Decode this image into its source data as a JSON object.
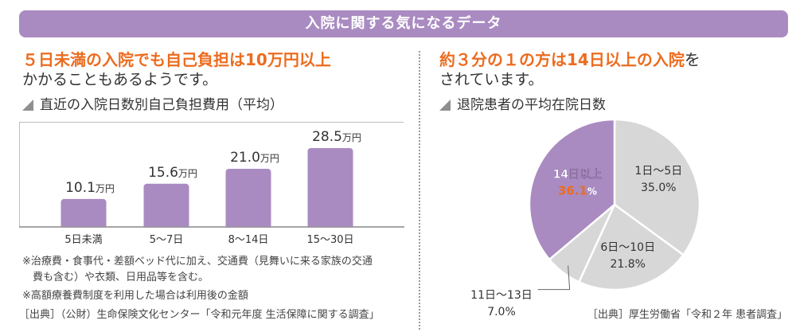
{
  "banner": "入院に関する気になるデータ",
  "left": {
    "headline_highlight": "５日未満の入院でも自己負担は10万円以上",
    "headline_rest": "かかることもあるようです。",
    "section_title": "直近の入院日数別自己負担費用（平均）",
    "notes": [
      "※治療費・食事代・差額ベッド代に加え、交通費（見舞いに来る家族の交通",
      "　費も含む）や衣類、日用品等を含む。",
      "※高額療養費制度を利用した場合は利用後の金額",
      "［出典］（公財）生命保険文化センター「令和元年度 生活保障に関する調査」"
    ]
  },
  "right": {
    "headline_hl1": "約３分の１の方は14日以上の入院",
    "headline_plain1": "を",
    "headline_rest": "されています。",
    "section_title": "退院患者の平均在院日数",
    "source": "［出典］厚生労働省「令和２年 患者調査」"
  },
  "colors": {
    "purple": "#a98bc1",
    "gray": "#d7d7d7",
    "orange": "#ec6c1f"
  },
  "chart_data": [
    {
      "type": "bar",
      "title": "直近の入院日数別自己負担費用（平均）",
      "categories": [
        "5日未満",
        "5～7日",
        "8～14日",
        "15～30日"
      ],
      "values": [
        10.1,
        15.6,
        21.0,
        28.5
      ],
      "value_labels": [
        "10.1",
        "15.6",
        "21.0",
        "28.5"
      ],
      "unit": "万円",
      "ylim": [
        0,
        30
      ]
    },
    {
      "type": "pie",
      "title": "退院患者の平均在院日数",
      "slices": [
        {
          "label": "1日～5日",
          "value": 35.0,
          "text": "35.0%"
        },
        {
          "label": "6日～10日",
          "value": 21.8,
          "text": "21.8%"
        },
        {
          "label": "11日～13日",
          "value": 7.0,
          "text": "7.0%"
        },
        {
          "label": "14日以上",
          "value": 36.1,
          "text": "36.1"
        }
      ],
      "percent_sign": "%"
    }
  ]
}
